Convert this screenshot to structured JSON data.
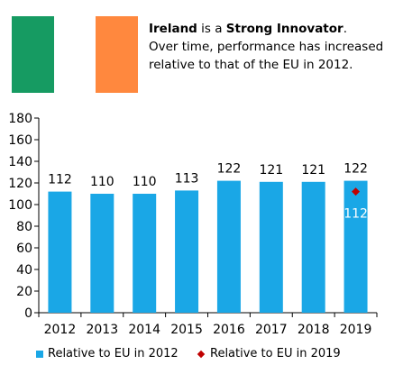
{
  "header": {
    "country": "Ireland",
    "mid": " is a ",
    "category": "Strong Innovator",
    "end": ".",
    "description": "Over time, performance has increased relative to that of the EU in 2012."
  },
  "flag": {
    "colors": [
      "#169b62",
      "#ffffff",
      "#ff883e"
    ]
  },
  "chart_data": {
    "type": "bar",
    "categories": [
      "2012",
      "2013",
      "2014",
      "2015",
      "2016",
      "2017",
      "2018",
      "2019"
    ],
    "series": [
      {
        "name": "Relative to EU in 2012",
        "values": [
          112,
          110,
          110,
          113,
          122,
          121,
          121,
          122
        ],
        "color": "#1aa7e6"
      },
      {
        "name": "Relative to EU in 2019",
        "type": "scatter",
        "points": [
          {
            "category": "2019",
            "value": 112
          }
        ],
        "color": "#c00000"
      }
    ],
    "ylim": [
      0,
      180
    ],
    "yticks": [
      0,
      20,
      40,
      60,
      80,
      100,
      120,
      140,
      160,
      180
    ],
    "grid": false,
    "legend_position": "bottom"
  }
}
